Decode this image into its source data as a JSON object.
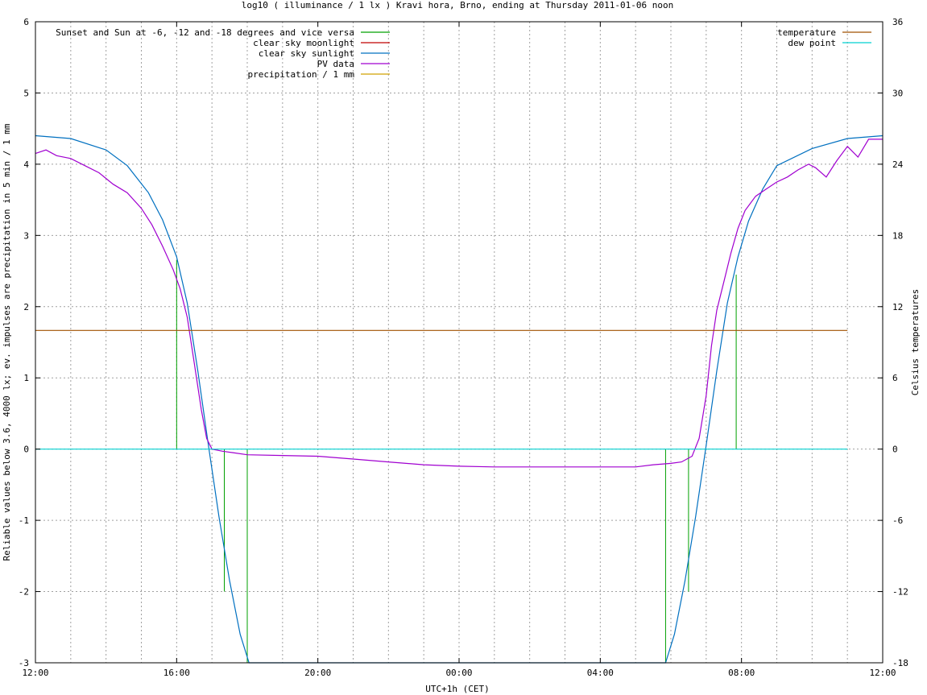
{
  "chart_data": {
    "type": "line",
    "title": "log10 ( illuminance / 1 lx ) Kravi hora, Brno, ending at Thursday 2011-01-06 noon",
    "xlabel": "UTC+1h (CET)",
    "ylabel": "Reliable values below 3.6, 4000 lx; ev. impulses are precipitation in 5 min / 1 mm",
    "y2label": "Celsius temperatures",
    "xlim": [
      0,
      24
    ],
    "ylim": [
      -3,
      6
    ],
    "y2lim": [
      -18,
      36
    ],
    "xticks": [
      {
        "v": 0,
        "label": "12:00"
      },
      {
        "v": 4,
        "label": "16:00"
      },
      {
        "v": 8,
        "label": "20:00"
      },
      {
        "v": 12,
        "label": "00:00"
      },
      {
        "v": 16,
        "label": "04:00"
      },
      {
        "v": 20,
        "label": "08:00"
      },
      {
        "v": 24,
        "label": "12:00"
      }
    ],
    "yticks": [
      {
        "v": -3,
        "label": "-3"
      },
      {
        "v": -2,
        "label": "-2"
      },
      {
        "v": -1,
        "label": "-1"
      },
      {
        "v": 0,
        "label": "0"
      },
      {
        "v": 1,
        "label": "1"
      },
      {
        "v": 2,
        "label": "2"
      },
      {
        "v": 3,
        "label": "3"
      },
      {
        "v": 4,
        "label": "4"
      },
      {
        "v": 5,
        "label": "5"
      },
      {
        "v": 6,
        "label": "6"
      }
    ],
    "y2ticks": [
      {
        "v": -18,
        "label": "-18"
      },
      {
        "v": -12,
        "label": "-12"
      },
      {
        "v": -6,
        "label": "-6"
      },
      {
        "v": 0,
        "label": "0"
      },
      {
        "v": 6,
        "label": "6"
      },
      {
        "v": 12,
        "label": "12"
      },
      {
        "v": 18,
        "label": "18"
      },
      {
        "v": 24,
        "label": "24"
      },
      {
        "v": 30,
        "label": "30"
      },
      {
        "v": 36,
        "label": "36"
      }
    ],
    "grid": true,
    "legend_left_position": "top-left",
    "legend_right_position": "top-right",
    "series": [
      {
        "name": "Sunset and Sun at -6, -12 and -18 degrees and vice versa",
        "color": "#00a000",
        "kind": "impulse",
        "x": [
          4.0,
          4.65,
          5.35,
          6.0,
          17.85,
          18.5,
          19.15,
          19.85
        ],
        "y": [
          2.65,
          0.0,
          -2.0,
          -3.0,
          -3.0,
          -2.0,
          0.0,
          2.45
        ]
      },
      {
        "name": "clear sky moonlight",
        "color": "#c00000",
        "kind": "line",
        "x": [],
        "y": []
      },
      {
        "name": "clear sky sunlight",
        "color": "#0070c0",
        "kind": "line",
        "x": [
          0.0,
          1.0,
          2.0,
          2.6,
          3.2,
          3.6,
          4.0,
          4.3,
          4.6,
          4.9,
          5.2,
          5.5,
          5.8,
          6.05,
          17.85,
          18.1,
          18.4,
          18.7,
          19.0,
          19.3,
          19.6,
          19.9,
          20.2,
          20.6,
          21.0,
          22.0,
          23.0,
          24.0
        ],
        "y": [
          4.4,
          4.36,
          4.2,
          3.98,
          3.6,
          3.22,
          2.7,
          2.05,
          1.1,
          0.05,
          -0.95,
          -1.85,
          -2.6,
          -3.0,
          -3.0,
          -2.6,
          -1.85,
          -0.95,
          0.05,
          1.1,
          2.05,
          2.7,
          3.2,
          3.65,
          3.98,
          4.22,
          4.36,
          4.4
        ]
      },
      {
        "name": "PV data",
        "color": "#a000d0",
        "kind": "line",
        "x": [
          0.0,
          0.3,
          0.6,
          1.0,
          1.4,
          1.8,
          2.2,
          2.6,
          3.0,
          3.3,
          3.6,
          3.9,
          4.1,
          4.3,
          4.5,
          4.7,
          4.85,
          5.0,
          5.3,
          5.6,
          6.0,
          7.0,
          8.0,
          9.0,
          10.0,
          11.0,
          12.0,
          13.0,
          14.0,
          15.0,
          16.0,
          17.0,
          17.5,
          18.0,
          18.3,
          18.6,
          18.8,
          19.0,
          19.15,
          19.3,
          19.5,
          19.7,
          19.9,
          20.1,
          20.4,
          20.7,
          21.0,
          21.3,
          21.6,
          21.9,
          22.1,
          22.4,
          22.7,
          23.0,
          23.3,
          23.6,
          24.0
        ],
        "y": [
          4.15,
          4.2,
          4.12,
          4.08,
          3.98,
          3.88,
          3.72,
          3.6,
          3.38,
          3.15,
          2.85,
          2.52,
          2.25,
          1.85,
          1.2,
          0.55,
          0.15,
          0.0,
          -0.03,
          -0.05,
          -0.08,
          -0.09,
          -0.1,
          -0.14,
          -0.18,
          -0.22,
          -0.24,
          -0.25,
          -0.25,
          -0.25,
          -0.25,
          -0.25,
          -0.22,
          -0.2,
          -0.18,
          -0.1,
          0.15,
          0.75,
          1.45,
          1.95,
          2.35,
          2.75,
          3.1,
          3.35,
          3.55,
          3.65,
          3.75,
          3.82,
          3.92,
          4.0,
          3.95,
          3.82,
          4.05,
          4.25,
          4.1,
          4.35,
          4.35
        ]
      },
      {
        "name": "precipitation / 1 mm",
        "color": "#d0a000",
        "kind": "impulse",
        "x": [],
        "y": []
      },
      {
        "name": "temperature",
        "color": "#a05000",
        "kind": "line",
        "axis": "y2",
        "x": [
          0.0,
          23.0
        ],
        "y": [
          10.0,
          10.0
        ]
      },
      {
        "name": "dew point",
        "color": "#00d0d0",
        "kind": "line",
        "axis": "y2",
        "x": [
          0.0,
          23.0
        ],
        "y": [
          0.0,
          0.0
        ]
      }
    ],
    "legend_left": [
      0,
      1,
      2,
      3,
      4
    ],
    "legend_right": [
      5,
      6
    ]
  }
}
